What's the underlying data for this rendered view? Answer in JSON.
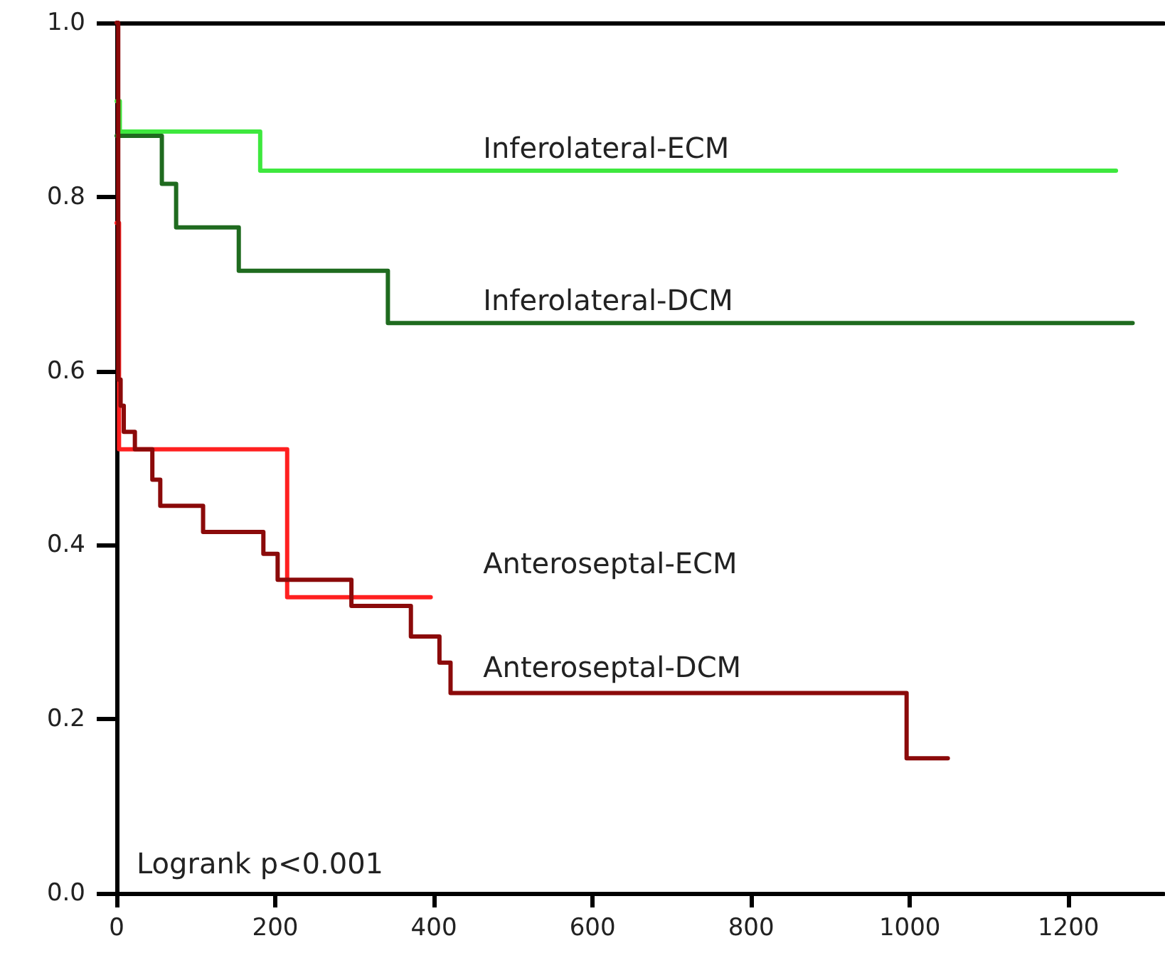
{
  "chart_data": {
    "type": "step",
    "xlim": [
      0,
      1320
    ],
    "xticks": [
      0,
      200,
      400,
      600,
      800,
      1000,
      1200
    ],
    "ylim": [
      0,
      1
    ],
    "yticks": [
      {
        "value": 0,
        "label": "0.0"
      },
      {
        "value": 0.2,
        "label": "0.2"
      },
      {
        "value": 0.4,
        "label": "0.4"
      },
      {
        "value": 0.6,
        "label": "0.6"
      },
      {
        "value": 0.8,
        "label": "0.8"
      },
      {
        "value": 1,
        "label": "1.0"
      }
    ],
    "grid": false,
    "marker": "none",
    "line_style": "solid",
    "legend": false,
    "annotations": [
      "Logrank p<0.001"
    ],
    "series": [
      {
        "name": "Inferolateral-ECM",
        "color": "#3ee83e",
        "x": [
          0,
          4,
          181,
          1260
        ],
        "values": [
          0.91,
          0.875,
          0.83,
          0.83
        ]
      },
      {
        "name": "Inferolateral-DCM",
        "color": "#1f6b1f",
        "x": [
          0,
          57,
          75,
          154,
          342,
          1281
        ],
        "values": [
          0.87,
          0.815,
          0.765,
          0.715,
          0.655,
          0.655
        ]
      },
      {
        "name": "Anteroseptal-ECM",
        "color": "#ff2020",
        "x": [
          0,
          3,
          215,
          396
        ],
        "values": [
          0.77,
          0.51,
          0.34,
          0.34
        ]
      },
      {
        "name": "Anteroseptal-DCM",
        "color": "#8b0a0a",
        "x": [
          0,
          2,
          5,
          9,
          23,
          45,
          55,
          109,
          185,
          203,
          296,
          371,
          407,
          421,
          996,
          1048
        ],
        "values": [
          1.0,
          0.59,
          0.56,
          0.53,
          0.51,
          0.475,
          0.445,
          0.415,
          0.39,
          0.36,
          0.33,
          0.295,
          0.265,
          0.23,
          0.155,
          0.155
        ]
      }
    ]
  }
}
